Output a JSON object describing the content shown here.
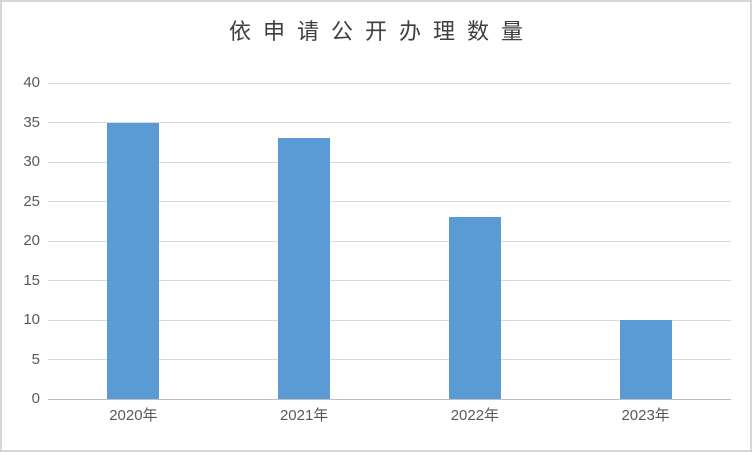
{
  "chart": {
    "title": "依申请公开办理数量"
  },
  "chart_data": {
    "type": "bar",
    "title": "依申请公开办理数量",
    "categories": [
      "2020年",
      "2021年",
      "2022年",
      "2023年"
    ],
    "values": [
      35,
      33,
      23,
      10
    ],
    "xlabel": "",
    "ylabel": "",
    "ylim": [
      0,
      40
    ],
    "ytick_step": 5,
    "ytick_labels": [
      "0",
      "5",
      "10",
      "15",
      "20",
      "25",
      "30",
      "35",
      "40"
    ],
    "grid": true,
    "legend": "none",
    "colors": {
      "bar": "#5B9BD5",
      "gridline": "#D9D9D9",
      "axis_line": "#BFBFBF",
      "tick_label": "#595959",
      "title": "#3F3F3F",
      "frame_border": "#D6D6D6",
      "background": "#FFFFFF"
    }
  }
}
